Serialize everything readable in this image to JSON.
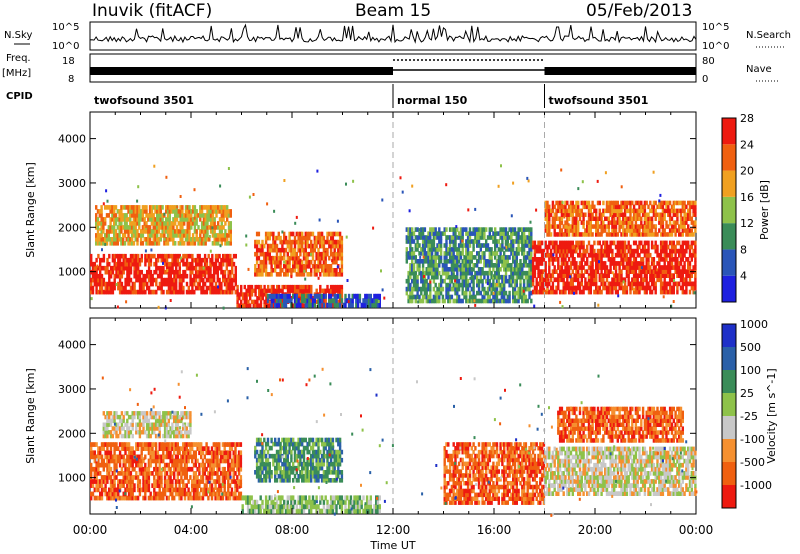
{
  "header": {
    "station": "Inuvik (fitACF)",
    "beam": "Beam 15",
    "date": "05/Feb/2013"
  },
  "strips": {
    "nsky_label": "N.Sky",
    "nsky_ticks": [
      "10^5",
      "10^0"
    ],
    "nsearch_label": "N.Search",
    "nsearch_ticks": [
      "10^5",
      "10^0"
    ],
    "freq_label_1": "Freq.",
    "freq_label_2": "[MHz]",
    "freq_ticks": [
      "18",
      "8"
    ],
    "nave_label": "Nave",
    "nave_ticks": [
      "80",
      "0"
    ],
    "cpid_label": "CPID",
    "cpid_segments": [
      {
        "label": "twofsound 3501",
        "start_h": 0,
        "end_h": 12
      },
      {
        "label": "normal 150",
        "start_h": 12,
        "end_h": 18
      },
      {
        "label": "twofsound 3501",
        "start_h": 18,
        "end_h": 24
      }
    ]
  },
  "chart_data": [
    {
      "type": "heatmap",
      "title": "Power",
      "xlabel": "Time UT",
      "ylabel": "Slant Range [km]",
      "x_ticks": [
        "00:00",
        "04:00",
        "08:00",
        "12:00",
        "16:00",
        "20:00",
        "00:00"
      ],
      "xlim_hours": [
        0,
        24
      ],
      "y_ticks": [
        "1000",
        "2000",
        "3000",
        "4000"
      ],
      "ylim": [
        180,
        4600
      ],
      "colorbar_label": "Power [dB]",
      "colorbar_ticks": [
        "4",
        "8",
        "12",
        "16",
        "20",
        "24",
        "28"
      ],
      "colorbar_colors": [
        "#1e20e0",
        "#2a55b8",
        "#3a8c58",
        "#8ec24a",
        "#f0a020",
        "#f06010",
        "#ee1a10"
      ],
      "regions": [
        {
          "t0": 0.0,
          "t1": 5.8,
          "r0": 500,
          "r1": 1400,
          "level": 6
        },
        {
          "t0": 0.2,
          "t1": 5.6,
          "r0": 1600,
          "r1": 2500,
          "level": 4
        },
        {
          "t0": 5.8,
          "t1": 10.0,
          "r0": 200,
          "r1": 700,
          "level": 6
        },
        {
          "t0": 6.5,
          "t1": 10.0,
          "r0": 900,
          "r1": 1900,
          "level": 5
        },
        {
          "t0": 7.0,
          "t1": 11.5,
          "r0": 200,
          "r1": 500,
          "level": 1
        },
        {
          "t0": 12.5,
          "t1": 17.5,
          "r0": 300,
          "r1": 2000,
          "level": 2
        },
        {
          "t0": 17.5,
          "t1": 24.0,
          "r0": 500,
          "r1": 1700,
          "level": 6
        },
        {
          "t0": 18.0,
          "t1": 24.0,
          "r0": 1800,
          "r1": 2600,
          "level": 5
        }
      ]
    },
    {
      "type": "heatmap",
      "title": "Velocity",
      "xlabel": "Time UT",
      "ylabel": "Slant Range [km]",
      "x_ticks": [
        "00:00",
        "04:00",
        "08:00",
        "12:00",
        "16:00",
        "20:00",
        "00:00"
      ],
      "xlim_hours": [
        0,
        24
      ],
      "y_ticks": [
        "1000",
        "2000",
        "3000",
        "4000"
      ],
      "ylim": [
        180,
        4600
      ],
      "colorbar_label": "Velocity [m s^-1]",
      "colorbar_ticks": [
        "-1000",
        "-500",
        "-100",
        "-25",
        "25",
        "100",
        "500",
        "1000"
      ],
      "colorbar_colors": [
        "#ee1a10",
        "#f06010",
        "#f59030",
        "#c8c8c8",
        "#8ec24a",
        "#3a8c58",
        "#2a60a8",
        "#1e30c8"
      ],
      "regions": [
        {
          "t0": 0.0,
          "t1": 6.0,
          "r0": 500,
          "r1": 1800,
          "level": 1
        },
        {
          "t0": 0.5,
          "t1": 4.0,
          "r0": 1900,
          "r1": 2500,
          "level": 3
        },
        {
          "t0": 6.5,
          "t1": 10.0,
          "r0": 900,
          "r1": 1900,
          "level": 5
        },
        {
          "t0": 6.0,
          "t1": 11.5,
          "r0": 200,
          "r1": 600,
          "level": 4
        },
        {
          "t0": 14.0,
          "t1": 18.0,
          "r0": 400,
          "r1": 1800,
          "level": 1
        },
        {
          "t0": 18.0,
          "t1": 24.0,
          "r0": 600,
          "r1": 1700,
          "level": 3
        },
        {
          "t0": 18.5,
          "t1": 23.5,
          "r0": 1800,
          "r1": 2600,
          "level": 1
        }
      ]
    }
  ]
}
